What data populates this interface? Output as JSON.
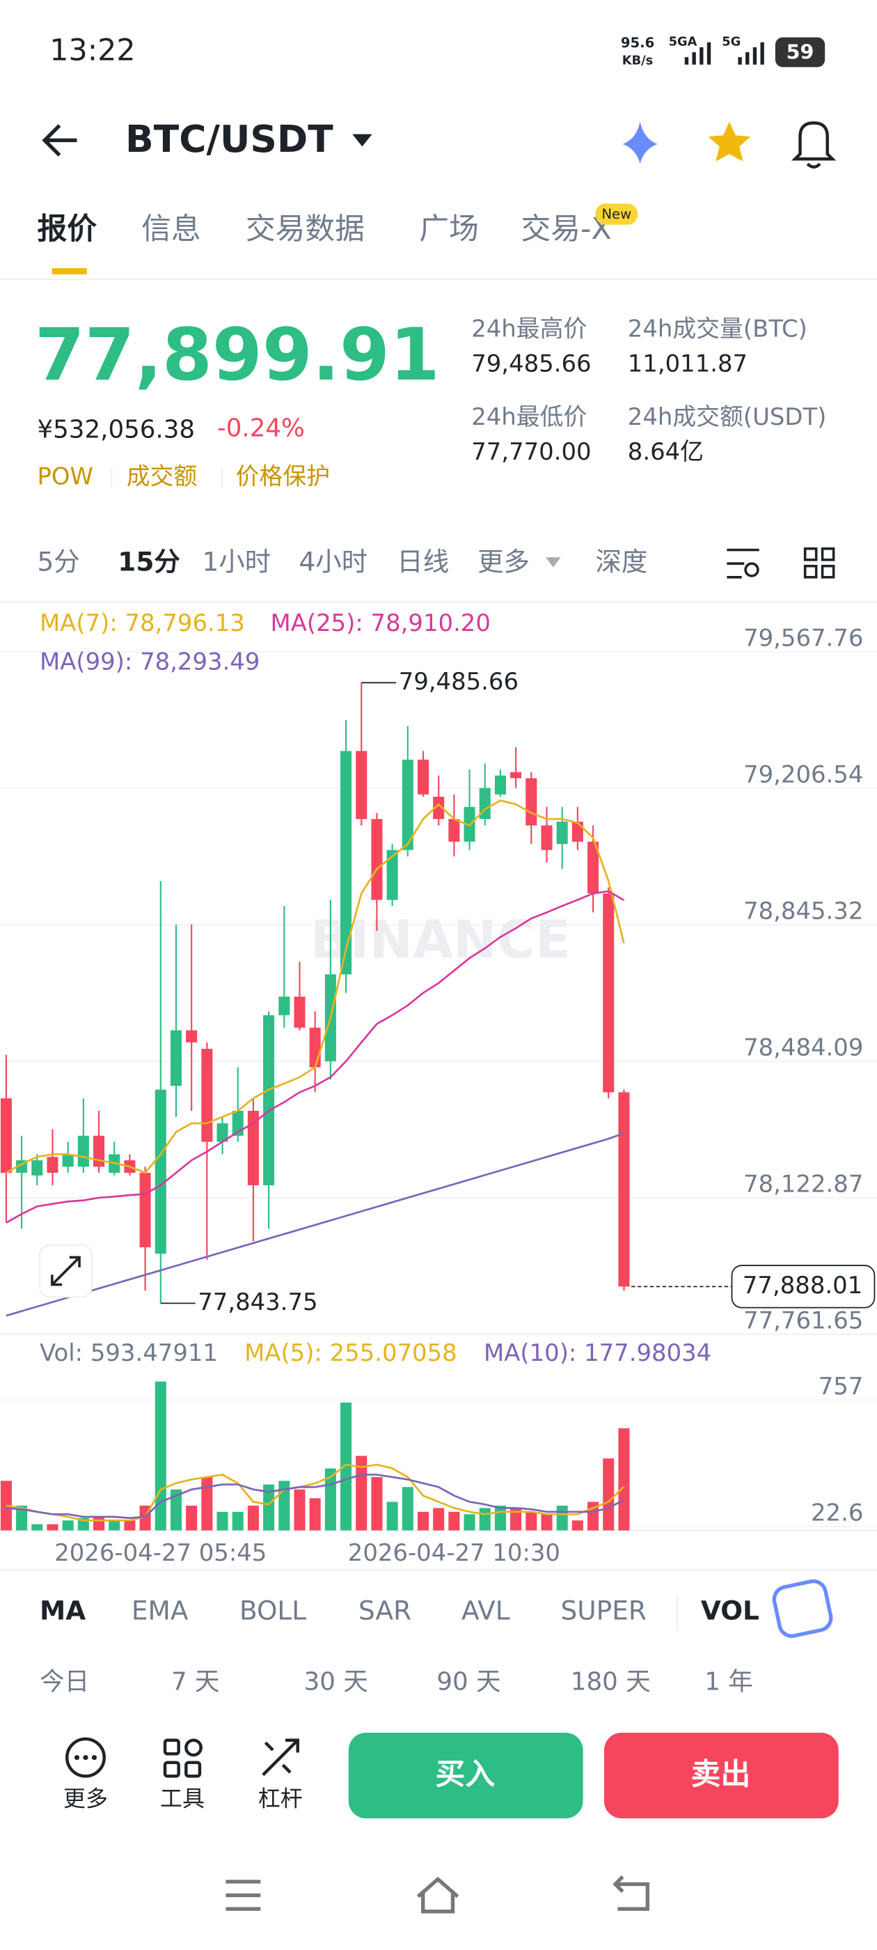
{
  "status_bar": {
    "time": "13:22",
    "net_speed": "95.6",
    "net_unit": "KB/s",
    "sim1": "5GA",
    "sim2": "5G",
    "battery": "59"
  },
  "header": {
    "pair": "BTC/USDT"
  },
  "tabs": [
    "报价",
    "信息",
    "交易数据",
    "广场",
    "交易-X"
  ],
  "new_badge": "New",
  "price": {
    "last": "77,899.91",
    "cny": "¥532,056.38",
    "change": "-0.24%",
    "tags": [
      "POW",
      "成交额",
      "价格保护"
    ]
  },
  "stats": [
    {
      "label": "24h最高价",
      "value": "79,485.66"
    },
    {
      "label": "24h成交量(BTC)",
      "value": "11,011.87"
    },
    {
      "label": "24h最低价",
      "value": "77,770.00"
    },
    {
      "label": "24h成交额(USDT)",
      "value": "8.64亿"
    }
  ],
  "intervals": [
    "5分",
    "15分",
    "1小时",
    "4小时",
    "日线",
    "更多",
    "深度"
  ],
  "chart_data": {
    "type": "candlestick",
    "watermark": "BINANCE",
    "categories": [
      null,
      null,
      null,
      null,
      null,
      null,
      null,
      null,
      null,
      null,
      "2026-04-27 05:45",
      null,
      null,
      null,
      null,
      null,
      null,
      null,
      null,
      null,
      null,
      null,
      null,
      null,
      null,
      null,
      null,
      null,
      null,
      "2026-04-27 10:30",
      null,
      null,
      null,
      null,
      null,
      null,
      null,
      null,
      null,
      null,
      null
    ],
    "open": [
      78386,
      78189,
      78182,
      78231,
      78205,
      78205,
      78287,
      78189,
      78222,
      78189,
      77975,
      78419,
      78566,
      78517,
      78271,
      78287,
      78353,
      78156,
      78606,
      78655,
      78573,
      78484,
      78714,
      79305,
      79125,
      78911,
      79043,
      79282,
      79184,
      79125,
      79065,
      79125,
      79190,
      79249,
      79233,
      79108,
      79059,
      79118,
      79065,
      78928,
      78402
    ],
    "high": [
      78501,
      78287,
      78238,
      78304,
      78271,
      78386,
      78353,
      78271,
      78238,
      78205,
      78961,
      78846,
      78846,
      78534,
      78337,
      78468,
      78386,
      78616,
      78895,
      78747,
      78616,
      78911,
      79387,
      79485.66,
      79141,
      79059,
      79371,
      79305,
      79240,
      79190,
      79256,
      79272,
      79256,
      79315,
      79249,
      79157,
      79157,
      79157,
      79108,
      78944,
      78409
    ],
    "low": [
      78057,
      78041,
      78156,
      78156,
      78189,
      78189,
      78189,
      78182,
      78182,
      77877,
      77843.75,
      78337,
      78353,
      77959,
      78238,
      78271,
      78008,
      78041,
      78573,
      78566,
      78402,
      78435,
      78665,
      79108,
      78829,
      78895,
      79026,
      79184,
      79108,
      79026,
      79043,
      79108,
      79184,
      79207,
      79059,
      79010,
      78993,
      79043,
      78878,
      78386,
      77877
    ],
    "close": [
      78189,
      78222,
      78222,
      78189,
      78238,
      78287,
      78205,
      78238,
      78189,
      77992,
      78409,
      78566,
      78534,
      78271,
      78320,
      78353,
      78156,
      78606,
      78655,
      78573,
      78468,
      78714,
      79305,
      79125,
      78911,
      79043,
      79282,
      79190,
      79125,
      79065,
      79157,
      79207,
      79240,
      79233,
      79108,
      79043,
      79118,
      79065,
      78928,
      78402,
      77888.01
    ],
    "up_color": "#2ebd85",
    "down_color": "#f6465d",
    "ylim": [
      77761.65,
      79699.11
    ],
    "yticks": [
      {
        "value": 79567.76,
        "label": "79,567.76"
      },
      {
        "value": 79206.54,
        "label": "79,206.54"
      },
      {
        "value": 78845.32,
        "label": "78,845.32"
      },
      {
        "value": 78484.09,
        "label": "78,484.09"
      },
      {
        "value": 78122.87,
        "label": "78,122.87"
      },
      {
        "value": 77761.65,
        "label": "77,761.65"
      }
    ],
    "high_mark": {
      "index": 23,
      "value": 79485.66,
      "label": "79,485.66"
    },
    "low_mark": {
      "index": 10,
      "value": 77843.75,
      "label": "77,843.75"
    },
    "current": {
      "value": 77888.01,
      "label": "77,888.01"
    },
    "ma": [
      {
        "label": "MA(7): 78,796.13",
        "color": "#e6b31e",
        "values": [
          78189,
          78212,
          78231,
          78238,
          78238,
          78231,
          78222,
          78215,
          78205,
          78189,
          78238,
          78297,
          78320,
          78320,
          78337,
          78353,
          78386,
          78409,
          78425,
          78442,
          78468,
          78599,
          78780,
          78928,
          78993,
          79026,
          79059,
          79125,
          79164,
          79125,
          79108,
          79151,
          79174,
          79164,
          79141,
          79125,
          79125,
          79115,
          79075,
          78961,
          78796.13
        ]
      },
      {
        "label": "MA(25): 78,910.20",
        "color": "#d6399b",
        "values": [
          78057,
          78080,
          78100,
          78107,
          78113,
          78116,
          78123,
          78126,
          78130,
          78133,
          78156,
          78189,
          78222,
          78245,
          78271,
          78297,
          78320,
          78353,
          78376,
          78402,
          78419,
          78442,
          78484,
          78534,
          78583,
          78606,
          78632,
          78665,
          78691,
          78724,
          78757,
          78783,
          78813,
          78836,
          78862,
          78878,
          78895,
          78911,
          78928,
          78934,
          78910.2
        ]
      },
      {
        "label": "MA(99): 78,293.49",
        "color": "#7d63b8",
        "values": [
          77811,
          77823,
          77835,
          77847,
          77859,
          77871,
          77883,
          77895,
          77907,
          77919,
          77931,
          77943,
          77955,
          77967,
          77979,
          77991,
          78003,
          78015,
          78027,
          78039,
          78051,
          78063,
          78075,
          78087,
          78099,
          78111,
          78123,
          78135,
          78147,
          78159,
          78171,
          78183,
          78195,
          78207,
          78219,
          78231,
          78243,
          78255,
          78267,
          78279,
          78293.49
        ]
      }
    ],
    "volume": {
      "label": "Vol: 593.47911",
      "values": [
        288,
        144,
        36,
        36,
        58,
        72,
        79,
        58,
        58,
        144,
        865,
        238,
        144,
        310,
        108,
        108,
        144,
        267,
        288,
        238,
        187,
        360,
        743,
        433,
        310,
        166,
        252,
        108,
        130,
        108,
        94,
        130,
        144,
        130,
        108,
        94,
        144,
        58,
        166,
        418,
        593.47911
      ],
      "ylim": [
        0,
        923
      ],
      "yticks": [
        757,
        22.6
      ],
      "ma": [
        {
          "label": "MA(5): 255.07058",
          "color": "#e6b31e",
          "values": [
            144,
            130,
            108,
            94,
            79,
            58,
            58,
            58,
            58,
            79,
            238,
            274,
            296,
            310,
            324,
            274,
            166,
            151,
            238,
            252,
            274,
            310,
            382,
            368,
            382,
            361,
            310,
            202,
            166,
            130,
            108,
            94,
            108,
            108,
            108,
            94,
            94,
            94,
            130,
            166,
            255.07058
          ]
        },
        {
          "label": "MA(10): 177.98034",
          "color": "#7d63b8",
          "values": [
            130,
            123,
            108,
            94,
            94,
            79,
            79,
            79,
            72,
            79,
            166,
            202,
            238,
            252,
            267,
            267,
            238,
            224,
            238,
            252,
            252,
            267,
            296,
            324,
            324,
            310,
            296,
            274,
            252,
            202,
            166,
            151,
            130,
            130,
            123,
            108,
            108,
            108,
            108,
            130,
            177.98034
          ]
        }
      ]
    }
  },
  "indicator_tabs": [
    "MA",
    "EMA",
    "BOLL",
    "SAR",
    "AVL",
    "SUPER",
    "VOL"
  ],
  "periods": [
    "今日",
    "7 天",
    "30 天",
    "90 天",
    "180 天",
    "1 年"
  ],
  "toolbar": {
    "more": "更多",
    "tools": "工具",
    "leverage": "杠杆",
    "buy": "买入",
    "sell": "卖出"
  }
}
